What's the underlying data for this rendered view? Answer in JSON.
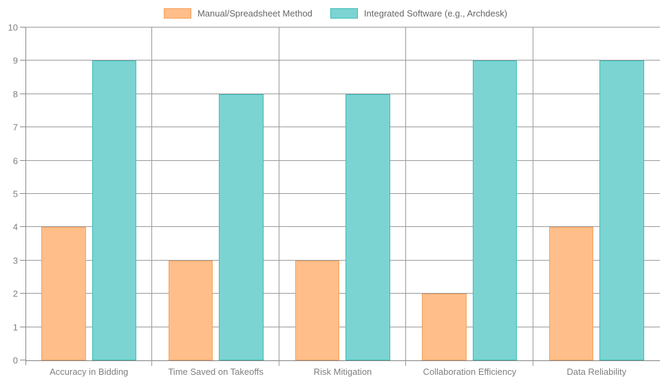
{
  "chart_data": {
    "type": "bar",
    "title": "",
    "xlabel": "",
    "ylabel": "",
    "categories": [
      "Accuracy in Bidding",
      "Time Saved on Takeoffs",
      "Risk Mitigation",
      "Collaboration Efficiency",
      "Data Reliability"
    ],
    "series": [
      {
        "name": "Manual/Spreadsheet Method",
        "values": [
          4,
          3,
          3,
          2,
          4
        ],
        "fill_color": "#FFBE8A",
        "border_color": "#F5A15C"
      },
      {
        "name": "Integrated Software (e.g., Archdesk)",
        "values": [
          9,
          8,
          8,
          9,
          9
        ],
        "fill_color": "#7BD4D1",
        "border_color": "#3ABDB9"
      }
    ],
    "ylim": [
      0,
      10
    ],
    "yticks": [
      0,
      1,
      2,
      3,
      4,
      5,
      6,
      7,
      8,
      9,
      10
    ],
    "grid": true,
    "legend_position": "top-center",
    "colors": {
      "gridline": "#999999",
      "axis": "#888888",
      "tick_label": "#7f7f7f",
      "category_label": "#7f7f7f",
      "legend_text": "#666666"
    }
  }
}
